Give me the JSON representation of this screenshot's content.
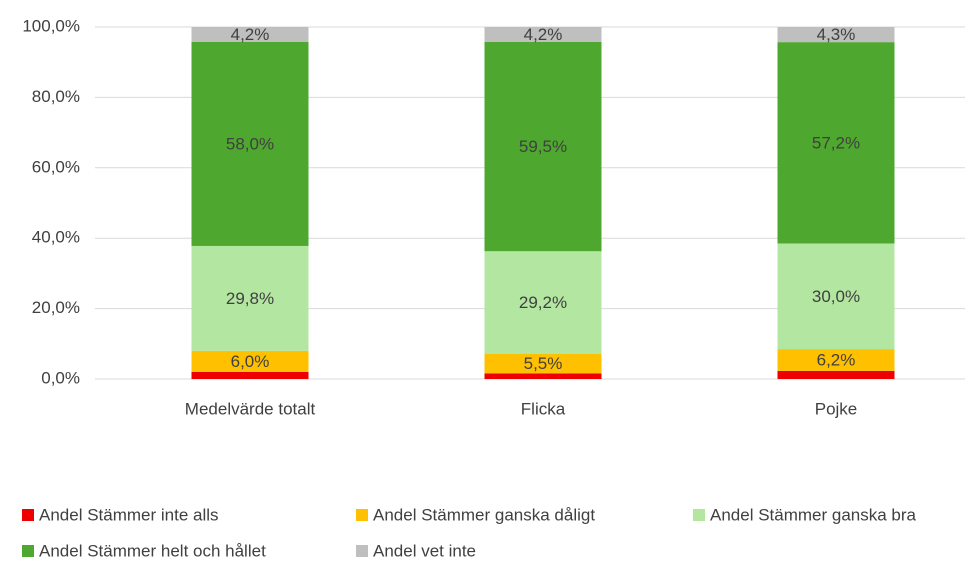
{
  "chart_data": {
    "type": "stacked_bar",
    "categories": [
      "Medelvärde totalt",
      "Flicka",
      "Pojke"
    ],
    "series": [
      {
        "name": "Andel Stämmer inte alls",
        "color": "#ee0000",
        "values": [
          2.0,
          1.6,
          2.3
        ]
      },
      {
        "name": "Andel Stämmer ganska dåligt",
        "color": "#ffc000",
        "values": [
          6.0,
          5.5,
          6.2
        ],
        "value_labels": [
          "6,0%",
          "5,5%",
          "6,2%"
        ]
      },
      {
        "name": "Andel Stämmer ganska bra",
        "color": "#b3e6a1",
        "values": [
          29.8,
          29.2,
          30.0
        ],
        "value_labels": [
          "29,8%",
          "29,2%",
          "30,0%"
        ]
      },
      {
        "name": "Andel Stämmer helt och hållet",
        "color": "#4ea72e",
        "values": [
          58.0,
          59.5,
          57.2
        ],
        "value_labels": [
          "58,0%",
          "59,5%",
          "57,2%"
        ]
      },
      {
        "name": "Andel vet inte",
        "color": "#bfbfbf",
        "values": [
          4.2,
          4.2,
          4.3
        ],
        "value_labels": [
          "4,2%",
          "4,2%",
          "4,3%"
        ]
      }
    ],
    "ylim": [
      0,
      100
    ],
    "yticks": [
      {
        "value": 0,
        "label": "0,0%"
      },
      {
        "value": 20,
        "label": "20,0%"
      },
      {
        "value": 40,
        "label": "40,0%"
      },
      {
        "value": 60,
        "label": "60,0%"
      },
      {
        "value": 80,
        "label": "80,0%"
      },
      {
        "value": 100,
        "label": "100,0%"
      }
    ],
    "grid": true,
    "legend": "bottom"
  }
}
